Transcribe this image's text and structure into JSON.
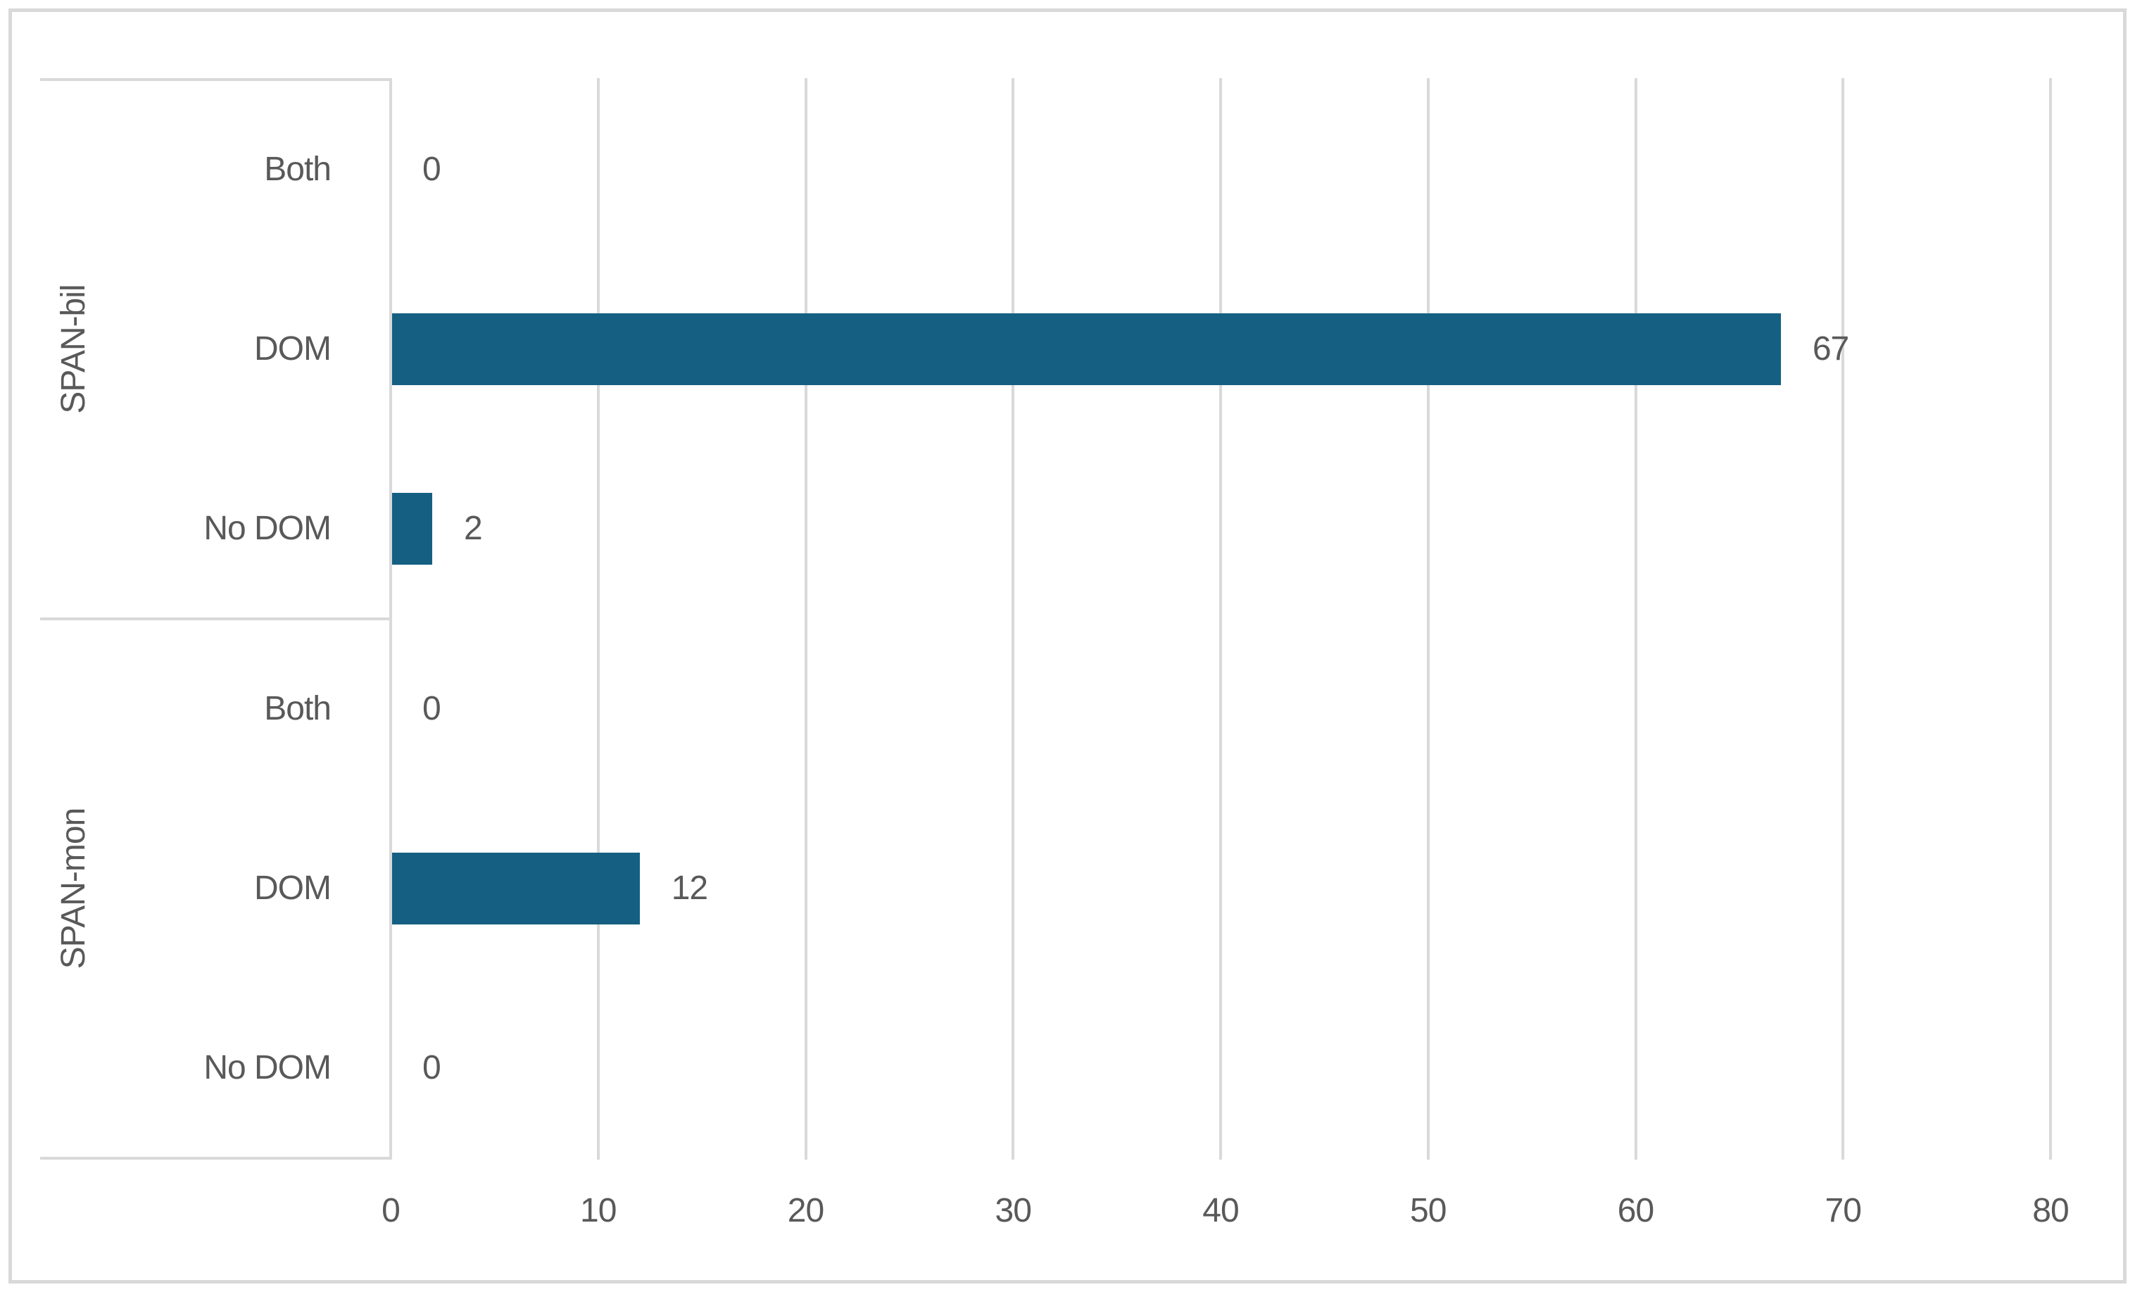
{
  "chart_data": {
    "type": "bar",
    "orientation": "horizontal",
    "title": "",
    "xlabel": "",
    "ylabel": "",
    "xlim": [
      0,
      80
    ],
    "x_ticks": [
      0,
      10,
      20,
      30,
      40,
      50,
      60,
      70,
      80
    ],
    "grid": true,
    "legend": false,
    "data_labels_shown": true,
    "groups": [
      {
        "label": "SPAN-bil",
        "categories": [
          "Both",
          "DOM",
          "No DOM"
        ],
        "values": [
          0,
          67,
          2
        ]
      },
      {
        "label": "SPAN-mon",
        "categories": [
          "Both",
          "DOM",
          "No DOM"
        ],
        "values": [
          0,
          12,
          0
        ]
      }
    ],
    "colors": {
      "bar": "#156082",
      "gridline": "#D9D9D9",
      "axis_line": "#D9D9D9",
      "category_box_line": "#D9D9D9",
      "text": "#595959",
      "outer_border": "#D9D9D9",
      "background": "#FFFFFF"
    }
  }
}
